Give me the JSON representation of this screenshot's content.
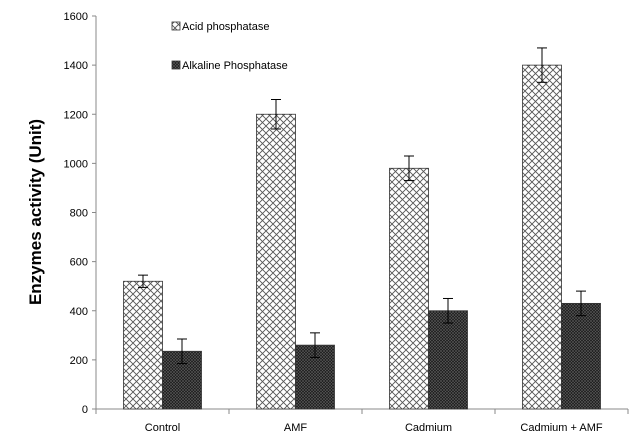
{
  "chart_data": {
    "type": "bar",
    "title": "",
    "xlabel": "",
    "ylabel": "Enzymes activity (Unit)",
    "ylim": [
      0,
      1600
    ],
    "yticks": [
      0,
      200,
      400,
      600,
      800,
      1000,
      1200,
      1400,
      1600
    ],
    "grid": false,
    "legend_position": "top-left",
    "categories": [
      "Control",
      "AMF",
      "Cadmium",
      "Cadmium + AMF"
    ],
    "series": [
      {
        "name": "Acid phosphatase",
        "pattern": "crosshatch",
        "color": "#ffffff",
        "values": [
          520,
          1200,
          980,
          1400
        ],
        "errors": [
          25,
          60,
          50,
          70
        ]
      },
      {
        "name": "Alkaline Phosphatase",
        "pattern": "dense-dark",
        "color": "#2b2b2b",
        "values": [
          235,
          260,
          400,
          430
        ],
        "errors": [
          50,
          50,
          50,
          50
        ]
      }
    ]
  }
}
